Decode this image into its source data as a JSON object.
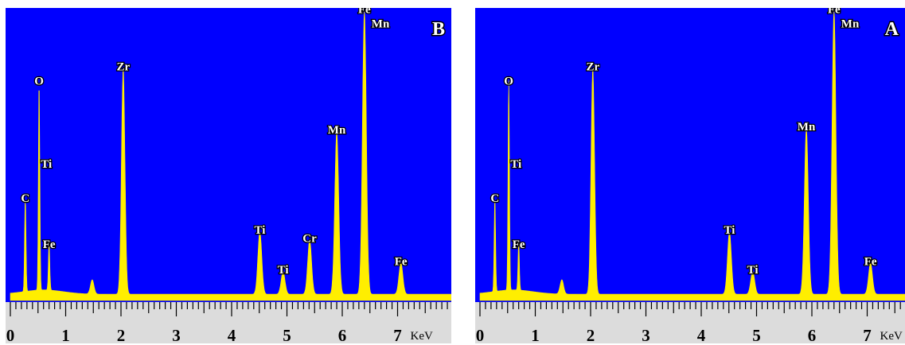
{
  "colors": {
    "background": "#0000ff",
    "spectrum": "#ffee00",
    "ruler": "#dcdcdc"
  },
  "chart_data": [
    {
      "type": "area",
      "panel_label": "B",
      "xlabel": "KeV",
      "xlim": [
        0,
        8
      ],
      "ylim": [
        0,
        100
      ],
      "x_ticks": [
        "0",
        "1",
        "2",
        "3",
        "4",
        "5",
        "6",
        "7"
      ],
      "peaks": [
        {
          "label": "C",
          "x": 0.27,
          "y": 33
        },
        {
          "label": "O",
          "x": 0.52,
          "y": 74
        },
        {
          "label": "Ti",
          "x": 0.45,
          "y": 45,
          "label_only": true
        },
        {
          "label": "Fe",
          "x": 0.7,
          "y": 17
        },
        {
          "label": "",
          "x": 1.48,
          "y": 5
        },
        {
          "label": "Zr",
          "x": 2.04,
          "y": 79
        },
        {
          "label": "Ti",
          "x": 4.51,
          "y": 22
        },
        {
          "label": "Ti",
          "x": 4.93,
          "y": 8
        },
        {
          "label": "Cr",
          "x": 5.41,
          "y": 19
        },
        {
          "label": "Mn",
          "x": 5.9,
          "y": 57
        },
        {
          "label": "Fe",
          "x": 6.4,
          "y": 99
        },
        {
          "label": "Mn",
          "x": 6.49,
          "y": 94,
          "label_only": true
        },
        {
          "label": "Fe",
          "x": 7.06,
          "y": 11
        }
      ]
    },
    {
      "type": "area",
      "panel_label": "A",
      "xlabel": "KeV",
      "xlim": [
        0,
        7.7
      ],
      "ylim": [
        0,
        100
      ],
      "x_ticks": [
        "0",
        "1",
        "2",
        "3",
        "4",
        "5",
        "6",
        "7"
      ],
      "peaks": [
        {
          "label": "C",
          "x": 0.27,
          "y": 33
        },
        {
          "label": "O",
          "x": 0.52,
          "y": 74
        },
        {
          "label": "Ti",
          "x": 0.45,
          "y": 45,
          "label_only": true
        },
        {
          "label": "Fe",
          "x": 0.7,
          "y": 17
        },
        {
          "label": "",
          "x": 1.48,
          "y": 5
        },
        {
          "label": "Zr",
          "x": 2.04,
          "y": 79
        },
        {
          "label": "Ti",
          "x": 4.51,
          "y": 22
        },
        {
          "label": "Ti",
          "x": 4.93,
          "y": 8
        },
        {
          "label": "Mn",
          "x": 5.9,
          "y": 58
        },
        {
          "label": "Fe",
          "x": 6.4,
          "y": 99
        },
        {
          "label": "Mn",
          "x": 6.49,
          "y": 94,
          "label_only": true
        },
        {
          "label": "Fe",
          "x": 7.06,
          "y": 11
        }
      ]
    }
  ]
}
